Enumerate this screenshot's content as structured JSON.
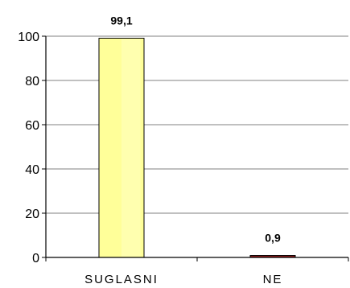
{
  "chart_data": {
    "type": "bar",
    "categories": [
      "SUGLASNI",
      "NE"
    ],
    "values": [
      99.1,
      0.9
    ],
    "data_labels": [
      "99,1",
      "0,9"
    ],
    "bar_colors": [
      "#FFFF99",
      "#8B1A1A"
    ],
    "ylim": [
      0,
      100
    ],
    "yticks": [
      0,
      20,
      40,
      60,
      80,
      100
    ],
    "ytick_labels": [
      "0",
      "20",
      "40",
      "60",
      "80",
      "100"
    ],
    "grid": true,
    "grid_color": "#808080",
    "title": "",
    "xlabel": "",
    "ylabel": "",
    "legend": "none"
  }
}
